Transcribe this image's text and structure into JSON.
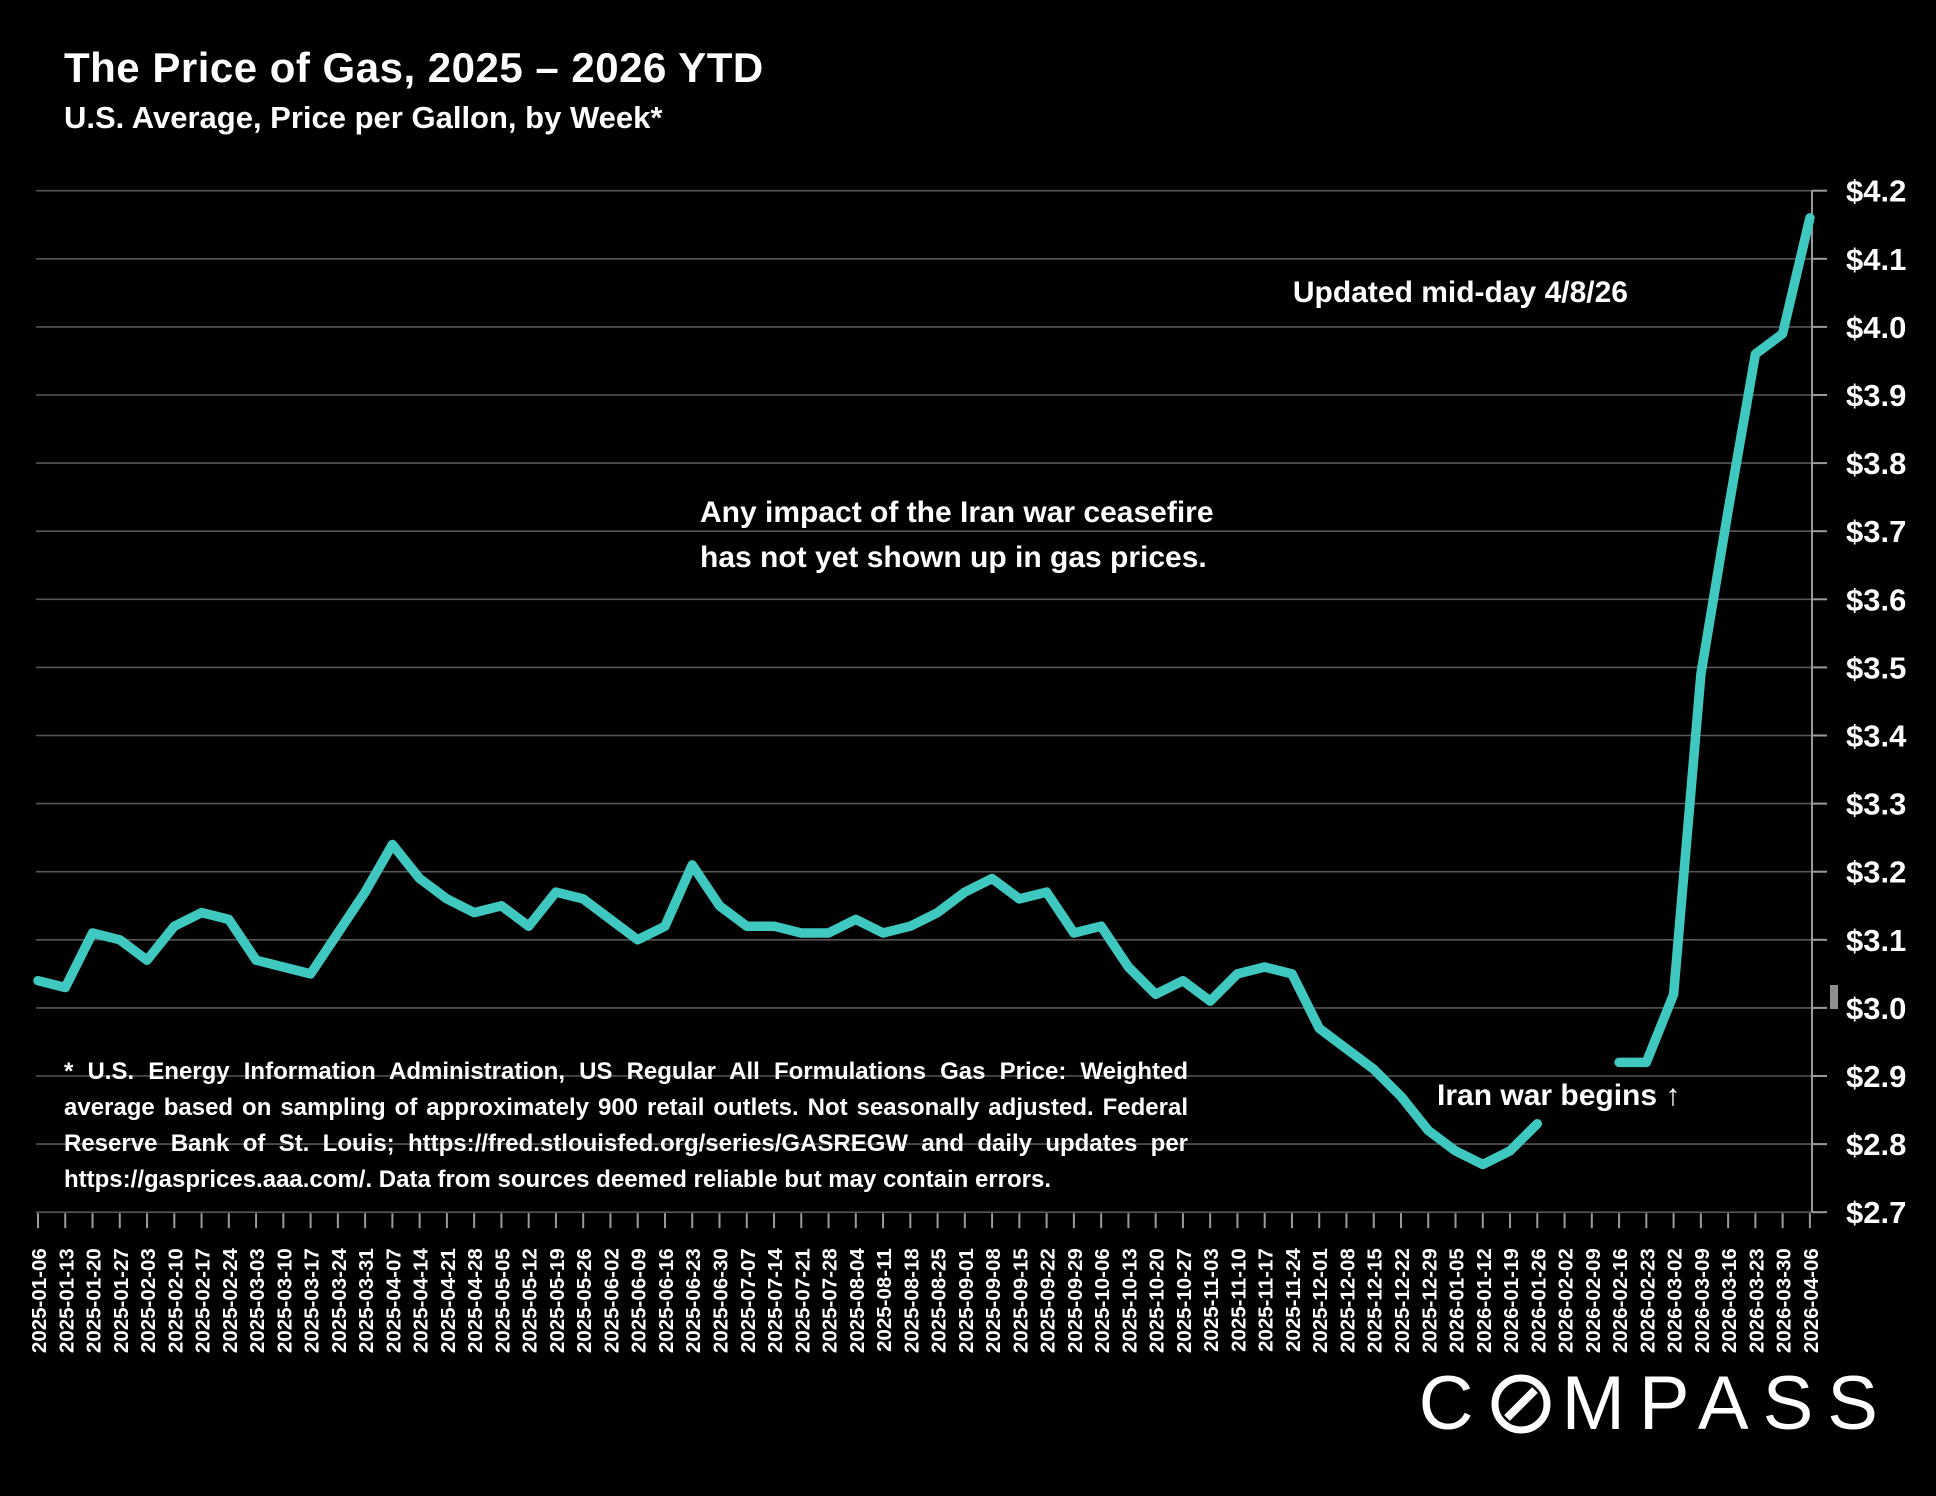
{
  "header": {
    "title": "The Price of Gas, 2025 – 2026 YTD",
    "subtitle": "U.S. Average, Price per Gallon, by Week*"
  },
  "annotations": {
    "updated": "Updated mid-day 4/8/26",
    "ceasefire": "Any impact of the Iran war ceasefire\nhas not yet shown up in gas prices.",
    "iran_war": "Iran war begins ↑"
  },
  "footnote": {
    "lines": [
      "* U.S. Energy Information Administration, US Regular All Formulations Gas Price: Weighted",
      "average based on sampling of approximately 900 retail outlets. Not seasonally adjusted. Federal",
      "Reserve Bank of St. Louis; https://fred.stlouisfed.org/series/GASREGW and daily updates per",
      "https://gasprices.aaa.com/. Data from sources deemed reliable but may contain errors."
    ]
  },
  "logo": {
    "name": "COMPASS",
    "c": "C",
    "mpass": "MPASS"
  },
  "colors": {
    "background": "#000000",
    "line": "#3FC8C0",
    "grid": "#565656",
    "axis": "#9a9a9a",
    "text": "#ffffff"
  },
  "chart_data": {
    "type": "line",
    "title": "The Price of Gas, 2025 – 2026 YTD",
    "subtitle": "U.S. Average, Price per Gallon, by Week",
    "ylabel": "",
    "xlabel": "",
    "ylim": [
      2.7,
      4.2
    ],
    "ytick_step": 0.1,
    "yticks": [
      "$4.2",
      "$4.1",
      "$4.0",
      "$3.9",
      "$3.8",
      "$3.7",
      "$3.6",
      "$3.5",
      "$3.4",
      "$3.3",
      "$3.2",
      "$3.1",
      "$3.0",
      "$2.9",
      "$2.8",
      "$2.7"
    ],
    "grid": true,
    "legend": false,
    "note": "values are null for 2026-02-02 and 2026-02-09 (gap in plotted line)",
    "x": [
      "2025-01-06",
      "2025-01-13",
      "2025-01-20",
      "2025-01-27",
      "2025-02-03",
      "2025-02-10",
      "2025-02-17",
      "2025-02-24",
      "2025-03-03",
      "2025-03-10",
      "2025-03-17",
      "2025-03-24",
      "2025-03-31",
      "2025-04-07",
      "2025-04-14",
      "2025-04-21",
      "2025-04-28",
      "2025-05-05",
      "2025-05-12",
      "2025-05-19",
      "2025-05-26",
      "2025-06-02",
      "2025-06-09",
      "2025-06-16",
      "2025-06-23",
      "2025-06-30",
      "2025-07-07",
      "2025-07-14",
      "2025-07-21",
      "2025-07-28",
      "2025-08-04",
      "2025-08-11",
      "2025-08-18",
      "2025-08-25",
      "2025-09-01",
      "2025-09-08",
      "2025-09-15",
      "2025-09-22",
      "2025-09-29",
      "2025-10-06",
      "2025-10-13",
      "2025-10-20",
      "2025-10-27",
      "2025-11-03",
      "2025-11-10",
      "2025-11-17",
      "2025-11-24",
      "2025-12-01",
      "2025-12-08",
      "2025-12-15",
      "2025-12-22",
      "2025-12-29",
      "2026-01-05",
      "2026-01-12",
      "2026-01-19",
      "2026-01-26",
      "2026-02-02",
      "2026-02-09",
      "2026-02-16",
      "2026-02-23",
      "2026-03-02",
      "2026-03-09",
      "2026-03-16",
      "2026-03-23",
      "2026-03-30",
      "2026-04-06"
    ],
    "series": [
      {
        "name": "U.S. average regular gas price, $ per gallon",
        "values": [
          3.04,
          3.03,
          3.11,
          3.1,
          3.07,
          3.12,
          3.14,
          3.13,
          3.07,
          3.06,
          3.05,
          3.11,
          3.17,
          3.24,
          3.19,
          3.16,
          3.14,
          3.15,
          3.12,
          3.17,
          3.16,
          3.13,
          3.1,
          3.12,
          3.21,
          3.15,
          3.12,
          3.12,
          3.11,
          3.11,
          3.13,
          3.11,
          3.12,
          3.14,
          3.17,
          3.19,
          3.16,
          3.17,
          3.11,
          3.12,
          3.06,
          3.02,
          3.04,
          3.01,
          3.05,
          3.06,
          3.05,
          2.97,
          2.94,
          2.91,
          2.87,
          2.82,
          2.79,
          2.77,
          2.79,
          2.83,
          null,
          null,
          2.92,
          2.92,
          3.02,
          3.49,
          3.73,
          3.96,
          3.99,
          4.16
        ]
      }
    ]
  }
}
